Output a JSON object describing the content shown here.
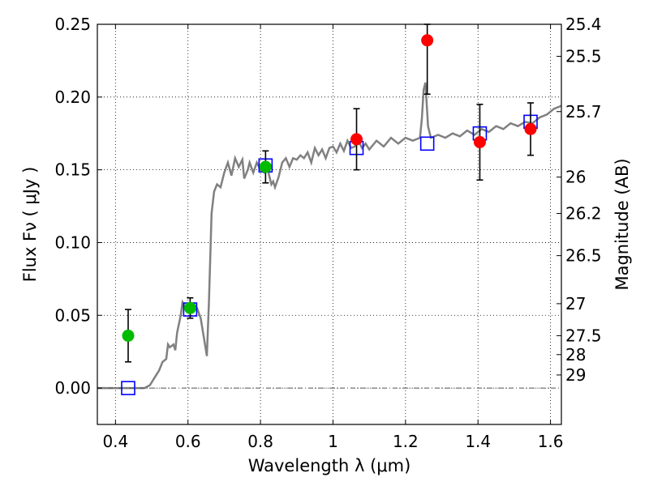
{
  "chart_data": {
    "type": "scatter",
    "xlabel": "Wavelength  λ (μm)",
    "ylabel": "Flux  Fν  ( μJy )",
    "ylabel_right": "Magnitude (AB)",
    "xlim": [
      0.35,
      1.63
    ],
    "ylim": [
      -0.025,
      0.25
    ],
    "x_ticks": [
      0.4,
      0.6,
      0.8,
      1.0,
      1.2,
      1.4,
      1.6
    ],
    "x_tick_labels": [
      "0.4",
      "0.6",
      "0.8",
      "1",
      "1.2",
      "1.4",
      "1.6"
    ],
    "y_ticks": [
      0.0,
      0.05,
      0.1,
      0.15,
      0.2,
      0.25
    ],
    "y_tick_labels": [
      "0.00",
      "0.05",
      "0.10",
      "0.15",
      "0.20",
      "0.25"
    ],
    "mag_ticks": [
      {
        "label": "25.4",
        "flux": 0.25
      },
      {
        "label": "25.5",
        "flux": 0.228
      },
      {
        "label": "25.7",
        "flux": 0.19
      },
      {
        "label": "26",
        "flux": 0.145
      },
      {
        "label": "26.2",
        "flux": 0.12
      },
      {
        "label": "26.5",
        "flux": 0.091
      },
      {
        "label": "27",
        "flux": 0.058
      },
      {
        "label": "27.5",
        "flux": 0.036
      },
      {
        "label": "28",
        "flux": 0.023
      },
      {
        "label": "29",
        "flux": 0.009
      }
    ],
    "grid": true,
    "zero_line": true,
    "colors": {
      "model": "#808080",
      "optical_points": "#00bb00",
      "nir_points": "#ff0000",
      "model_bandpass": "#0000ff",
      "errorbar": "#000000"
    },
    "series": [
      {
        "kind": "model_spectrum",
        "points": [
          [
            0.35,
            0.0
          ],
          [
            0.4,
            0.0
          ],
          [
            0.44,
            0.0
          ],
          [
            0.48,
            0.0
          ],
          [
            0.495,
            0.002
          ],
          [
            0.51,
            0.008
          ],
          [
            0.52,
            0.012
          ],
          [
            0.53,
            0.018
          ],
          [
            0.54,
            0.02
          ],
          [
            0.545,
            0.03
          ],
          [
            0.55,
            0.028
          ],
          [
            0.56,
            0.03
          ],
          [
            0.565,
            0.026
          ],
          [
            0.57,
            0.038
          ],
          [
            0.58,
            0.05
          ],
          [
            0.585,
            0.059
          ],
          [
            0.595,
            0.055
          ],
          [
            0.605,
            0.055
          ],
          [
            0.615,
            0.058
          ],
          [
            0.625,
            0.055
          ],
          [
            0.635,
            0.048
          ],
          [
            0.645,
            0.033
          ],
          [
            0.652,
            0.022
          ],
          [
            0.658,
            0.06
          ],
          [
            0.665,
            0.12
          ],
          [
            0.672,
            0.135
          ],
          [
            0.68,
            0.14
          ],
          [
            0.69,
            0.138
          ],
          [
            0.7,
            0.148
          ],
          [
            0.71,
            0.155
          ],
          [
            0.72,
            0.146
          ],
          [
            0.73,
            0.158
          ],
          [
            0.74,
            0.152
          ],
          [
            0.75,
            0.157
          ],
          [
            0.755,
            0.144
          ],
          [
            0.765,
            0.15
          ],
          [
            0.77,
            0.155
          ],
          [
            0.78,
            0.148
          ],
          [
            0.79,
            0.155
          ],
          [
            0.8,
            0.15
          ],
          [
            0.81,
            0.148
          ],
          [
            0.82,
            0.15
          ],
          [
            0.83,
            0.14
          ],
          [
            0.835,
            0.142
          ],
          [
            0.84,
            0.138
          ],
          [
            0.85,
            0.145
          ],
          [
            0.86,
            0.155
          ],
          [
            0.87,
            0.158
          ],
          [
            0.88,
            0.152
          ],
          [
            0.89,
            0.158
          ],
          [
            0.9,
            0.157
          ],
          [
            0.91,
            0.16
          ],
          [
            0.92,
            0.158
          ],
          [
            0.93,
            0.162
          ],
          [
            0.94,
            0.155
          ],
          [
            0.95,
            0.165
          ],
          [
            0.96,
            0.16
          ],
          [
            0.97,
            0.164
          ],
          [
            0.98,
            0.158
          ],
          [
            0.99,
            0.165
          ],
          [
            1.0,
            0.166
          ],
          [
            1.01,
            0.162
          ],
          [
            1.02,
            0.168
          ],
          [
            1.03,
            0.163
          ],
          [
            1.04,
            0.17
          ],
          [
            1.05,
            0.165
          ],
          [
            1.06,
            0.166
          ],
          [
            1.07,
            0.17
          ],
          [
            1.08,
            0.165
          ],
          [
            1.09,
            0.168
          ],
          [
            1.1,
            0.164
          ],
          [
            1.12,
            0.17
          ],
          [
            1.14,
            0.166
          ],
          [
            1.16,
            0.172
          ],
          [
            1.18,
            0.168
          ],
          [
            1.2,
            0.172
          ],
          [
            1.22,
            0.17
          ],
          [
            1.24,
            0.172
          ],
          [
            1.245,
            0.185
          ],
          [
            1.25,
            0.205
          ],
          [
            1.255,
            0.21
          ],
          [
            1.262,
            0.18
          ],
          [
            1.27,
            0.172
          ],
          [
            1.29,
            0.174
          ],
          [
            1.31,
            0.172
          ],
          [
            1.33,
            0.175
          ],
          [
            1.35,
            0.173
          ],
          [
            1.37,
            0.177
          ],
          [
            1.39,
            0.174
          ],
          [
            1.41,
            0.178
          ],
          [
            1.43,
            0.176
          ],
          [
            1.45,
            0.18
          ],
          [
            1.47,
            0.178
          ],
          [
            1.49,
            0.182
          ],
          [
            1.51,
            0.18
          ],
          [
            1.53,
            0.183
          ],
          [
            1.55,
            0.182
          ],
          [
            1.57,
            0.186
          ],
          [
            1.59,
            0.188
          ],
          [
            1.61,
            0.192
          ],
          [
            1.63,
            0.194
          ]
        ]
      },
      {
        "kind": "optical_photometry",
        "x": [
          0.435,
          0.606,
          0.814
        ],
        "y": [
          0.036,
          0.055,
          0.152
        ],
        "yerr": [
          0.018,
          0.007,
          0.011
        ]
      },
      {
        "kind": "nir_photometry",
        "x": [
          1.065,
          1.26,
          1.405,
          1.545
        ],
        "y": [
          0.171,
          0.239,
          0.169,
          0.178
        ],
        "yerr": [
          0.021,
          0.037,
          0.026,
          0.018
        ]
      },
      {
        "kind": "model_bandpass_flux",
        "x": [
          0.435,
          0.606,
          0.814,
          1.065,
          1.26,
          1.405,
          1.545
        ],
        "y": [
          0.0,
          0.054,
          0.153,
          0.165,
          0.168,
          0.175,
          0.183
        ]
      }
    ]
  }
}
